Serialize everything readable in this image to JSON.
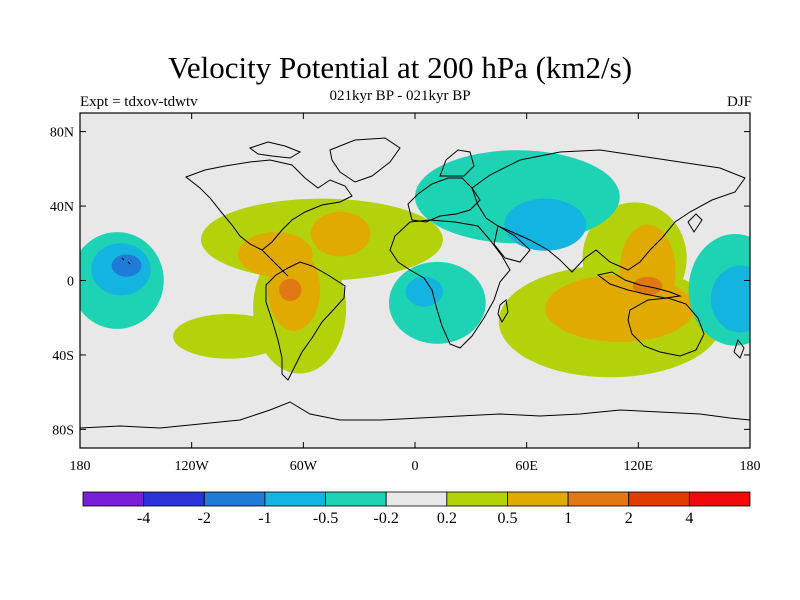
{
  "header": {
    "title": "Velocity Potential at 200 hPa (km2/s)",
    "subtitle": "021kyr BP - 021kyr BP",
    "left_label": "Expt = tdxov-tdwtv",
    "right_label": "DJF"
  },
  "map": {
    "projection": "cylindrical-equidistant",
    "lon_range": [
      -180,
      180
    ],
    "lat_range": [
      -90,
      90
    ],
    "x_ticks": [
      {
        "lon": -180,
        "label": "180"
      },
      {
        "lon": -120,
        "label": "120W"
      },
      {
        "lon": -60,
        "label": "60W"
      },
      {
        "lon": 0,
        "label": "0"
      },
      {
        "lon": 60,
        "label": "60E"
      },
      {
        "lon": 120,
        "label": "120E"
      },
      {
        "lon": 180,
        "label": "180"
      }
    ],
    "y_ticks": [
      {
        "lat": 80,
        "label": "80N"
      },
      {
        "lat": 40,
        "label": "40N"
      },
      {
        "lat": 0,
        "label": "0"
      },
      {
        "lat": -40,
        "label": "40S"
      },
      {
        "lat": -80,
        "label": "80S"
      }
    ],
    "background_color": "#e8e8e8",
    "coastline_color": "#000000",
    "field_regions": [
      {
        "level": 0.2,
        "lon_center": -50,
        "lat_center": 22,
        "lon_radius": 65,
        "lat_radius": 22
      },
      {
        "level": 0.2,
        "lon_center": -62,
        "lat_center": -15,
        "lon_radius": 25,
        "lat_radius": 35
      },
      {
        "level": 0.2,
        "lon_center": -100,
        "lat_center": -30,
        "lon_radius": 30,
        "lat_radius": 12
      },
      {
        "level": 0.5,
        "lon_center": -75,
        "lat_center": 14,
        "lon_radius": 20,
        "lat_radius": 12
      },
      {
        "level": 0.5,
        "lon_center": -40,
        "lat_center": 25,
        "lon_radius": 16,
        "lat_radius": 12
      },
      {
        "level": 0.5,
        "lon_center": -65,
        "lat_center": -5,
        "lon_radius": 14,
        "lat_radius": 22
      },
      {
        "level": 1,
        "lon_center": -67,
        "lat_center": -5,
        "lon_radius": 6,
        "lat_radius": 6
      },
      {
        "level": 0.2,
        "lon_center": 105,
        "lat_center": -22,
        "lon_radius": 60,
        "lat_radius": 30
      },
      {
        "level": 0.2,
        "lon_center": 118,
        "lat_center": 12,
        "lon_radius": 28,
        "lat_radius": 30
      },
      {
        "level": 0.5,
        "lon_center": 110,
        "lat_center": -15,
        "lon_radius": 40,
        "lat_radius": 18
      },
      {
        "level": 0.5,
        "lon_center": 125,
        "lat_center": 5,
        "lon_radius": 15,
        "lat_radius": 25
      },
      {
        "level": 1,
        "lon_center": 125,
        "lat_center": -3,
        "lon_radius": 8,
        "lat_radius": 5
      },
      {
        "level": -0.2,
        "lon_center": 55,
        "lat_center": 45,
        "lon_radius": 55,
        "lat_radius": 25
      },
      {
        "level": -0.5,
        "lon_center": 70,
        "lat_center": 30,
        "lon_radius": 22,
        "lat_radius": 14
      },
      {
        "level": -0.2,
        "lon_center": 12,
        "lat_center": -12,
        "lon_radius": 26,
        "lat_radius": 22
      },
      {
        "level": -0.5,
        "lon_center": 5,
        "lat_center": -6,
        "lon_radius": 10,
        "lat_radius": 8
      },
      {
        "level": -0.2,
        "lon_center": -160,
        "lat_center": 0,
        "lon_radius": 25,
        "lat_radius": 26
      },
      {
        "level": -0.5,
        "lon_center": -158,
        "lat_center": 6,
        "lon_radius": 16,
        "lat_radius": 14
      },
      {
        "level": -1,
        "lon_center": -155,
        "lat_center": 8,
        "lon_radius": 8,
        "lat_radius": 6
      },
      {
        "level": -0.2,
        "lon_center": 172,
        "lat_center": -5,
        "lon_radius": 25,
        "lat_radius": 30
      },
      {
        "level": -0.5,
        "lon_center": 175,
        "lat_center": -10,
        "lon_radius": 16,
        "lat_radius": 18
      }
    ]
  },
  "colorbar": {
    "bins": [
      {
        "color": "#7a1fd8"
      },
      {
        "color": "#2a32d8"
      },
      {
        "color": "#1f7ad8"
      },
      {
        "color": "#14b4e0"
      },
      {
        "color": "#1ed2b4"
      },
      {
        "color": "#e8e8e8"
      },
      {
        "color": "#b4d20a"
      },
      {
        "color": "#e0aa00"
      },
      {
        "color": "#e07814"
      },
      {
        "color": "#e03c00"
      },
      {
        "color": "#f00a0a"
      }
    ],
    "labels": [
      "-4",
      "-2",
      "-1",
      "-0.5",
      "-0.2",
      "0.2",
      "0.5",
      "1",
      "2",
      "4"
    ]
  }
}
